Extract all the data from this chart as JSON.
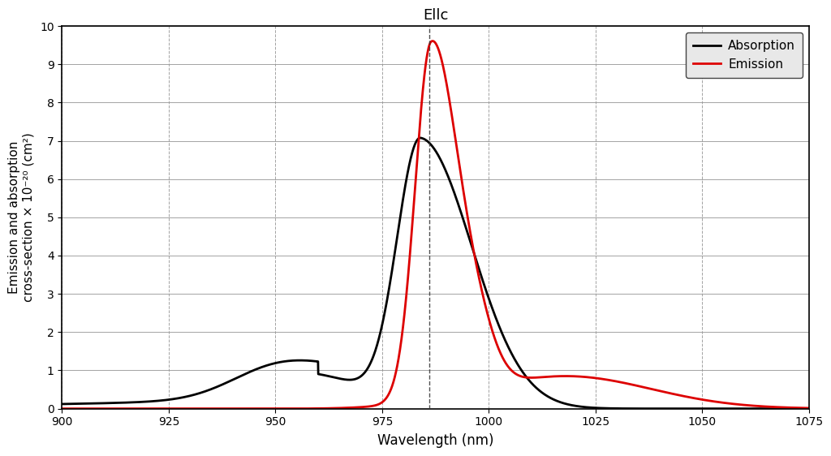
{
  "title": "Ellc",
  "xlabel": "Wavelength (nm)",
  "ylabel": "Emission and absorption\ncross-section × 10⁻²⁰ (cm²)",
  "xlim": [
    900,
    1075
  ],
  "ylim": [
    0,
    10
  ],
  "xticks": [
    900,
    925,
    950,
    975,
    1000,
    1025,
    1050,
    1075
  ],
  "yticks": [
    0,
    1,
    2,
    3,
    4,
    5,
    6,
    7,
    8,
    9,
    10
  ],
  "vline_x": 986,
  "absorption_color": "#000000",
  "emission_color": "#dd0000",
  "legend_labels": [
    "Absorption",
    "Emission"
  ],
  "background_color": "#ffffff",
  "grid_color_h": "#999999",
  "grid_color_v": "#999999"
}
